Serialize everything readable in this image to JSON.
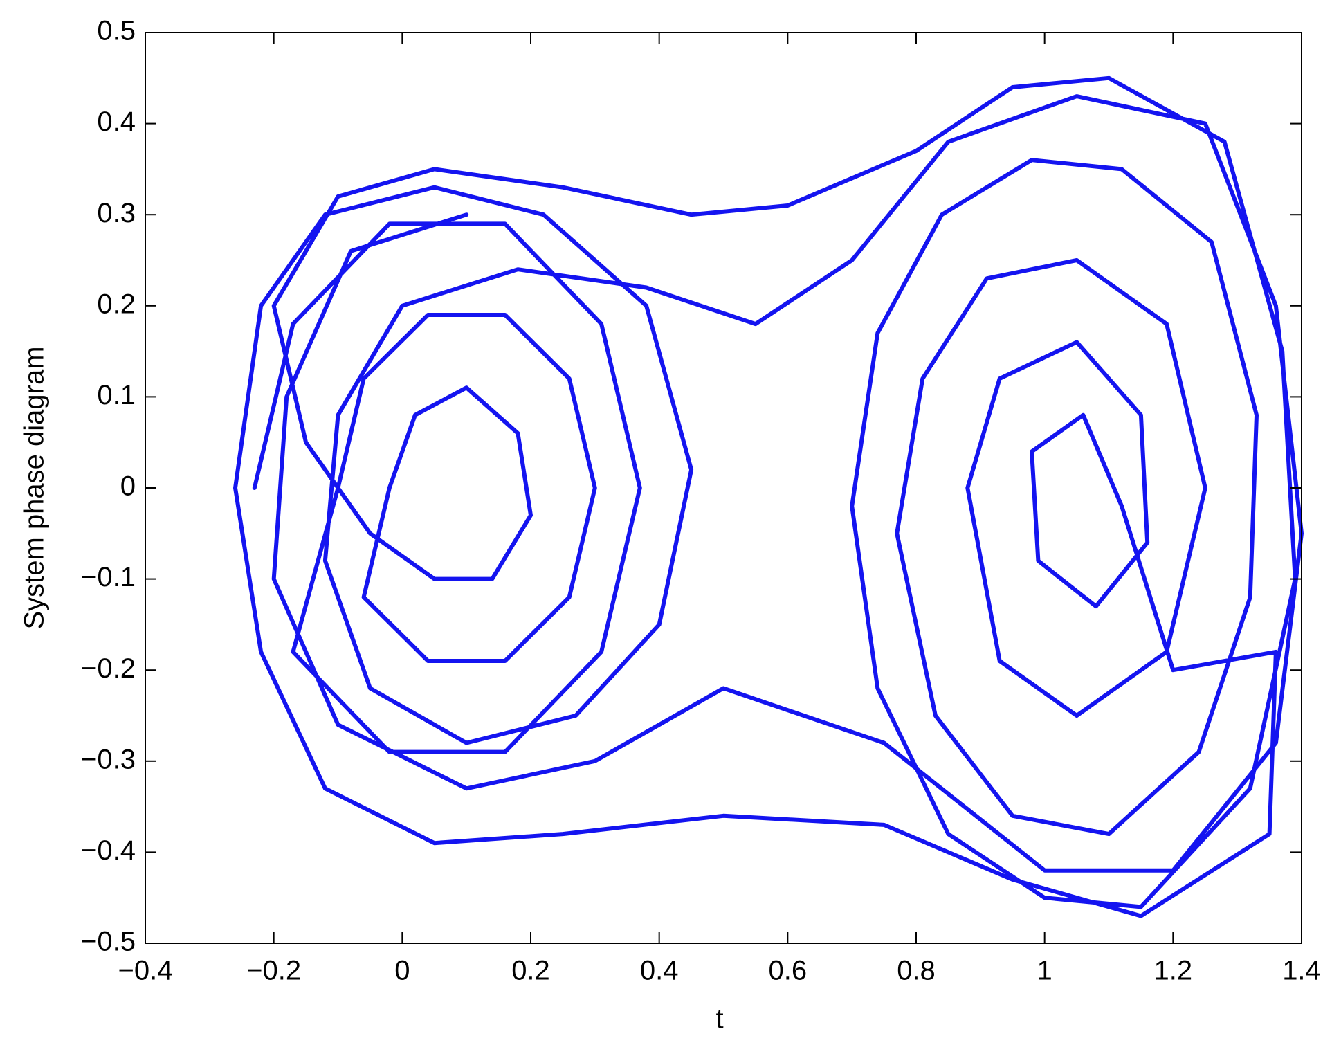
{
  "chart_data": {
    "type": "line",
    "x_label": "t",
    "y_label": "System phase diagram",
    "xlim": [
      -0.4,
      1.4
    ],
    "ylim": [
      -0.5,
      0.5
    ],
    "xticks": [
      {
        "value": -0.4,
        "label": "−0.4"
      },
      {
        "value": -0.2,
        "label": "−0.2"
      },
      0,
      0.2,
      0.4,
      0.6,
      0.8,
      1,
      1.2,
      1.4
    ],
    "yticks": [
      {
        "value": -0.5,
        "label": "−0.5"
      },
      {
        "value": -0.4,
        "label": "−0.4"
      },
      {
        "value": -0.3,
        "label": "−0.3"
      },
      {
        "value": -0.2,
        "label": "−0.2"
      },
      {
        "value": -0.1,
        "label": "−0.1"
      },
      0,
      0.1,
      0.2,
      0.3,
      0.4,
      0.5
    ],
    "grid": false,
    "x": [
      -0.23,
      -0.17,
      -0.02,
      0.16,
      0.31,
      0.37,
      0.31,
      0.16,
      -0.02,
      -0.17,
      -0.1,
      -0.06,
      0.04,
      0.16,
      0.26,
      0.3,
      0.26,
      0.16,
      0.04,
      -0.06,
      -0.02,
      0.02,
      0.1,
      0.18,
      0.2,
      0.14,
      0.05,
      -0.05,
      -0.15,
      -0.2,
      -0.1,
      0.05,
      0.25,
      0.45,
      0.6,
      0.8,
      0.95,
      1.1,
      1.28,
      1.37,
      1.39,
      1.32,
      1.15,
      1.0,
      0.85,
      0.74,
      0.7,
      0.74,
      0.84,
      0.98,
      1.12,
      1.26,
      1.33,
      1.32,
      1.24,
      1.1,
      0.95,
      0.83,
      0.77,
      0.81,
      0.91,
      1.05,
      1.19,
      1.25,
      1.19,
      1.05,
      0.93,
      0.88,
      0.93,
      1.05,
      1.15,
      1.16,
      1.08,
      0.99,
      0.98,
      1.06,
      1.12,
      1.2,
      1.36,
      1.35,
      1.15,
      0.95,
      0.75,
      0.5,
      0.25,
      0.05,
      -0.12,
      -0.22,
      -0.26,
      -0.22,
      -0.12,
      0.05,
      0.22,
      0.38,
      0.45,
      0.4,
      0.27,
      0.1,
      -0.05,
      -0.12,
      -0.1,
      0.0,
      0.18,
      0.38,
      0.55,
      0.7,
      0.85,
      1.05,
      1.25,
      1.36,
      1.4,
      1.36,
      1.2,
      1.0,
      0.75,
      0.5,
      0.3,
      0.1,
      -0.1,
      -0.2,
      -0.18,
      -0.08,
      0.1
    ],
    "series": [
      {
        "color": "#1414f0",
        "values": [
          0,
          0.18,
          0.29,
          0.29,
          0.18,
          0,
          -0.18,
          -0.29,
          -0.29,
          -0.18,
          0,
          0.12,
          0.19,
          0.19,
          0.12,
          0,
          -0.12,
          -0.19,
          -0.19,
          -0.12,
          0,
          0.08,
          0.11,
          0.06,
          -0.03,
          -0.1,
          -0.1,
          -0.05,
          0.05,
          0.2,
          0.32,
          0.35,
          0.33,
          0.3,
          0.31,
          0.37,
          0.44,
          0.45,
          0.38,
          0.15,
          -0.1,
          -0.33,
          -0.46,
          -0.45,
          -0.38,
          -0.22,
          -0.02,
          0.17,
          0.3,
          0.36,
          0.35,
          0.27,
          0.08,
          -0.12,
          -0.29,
          -0.38,
          -0.36,
          -0.25,
          -0.05,
          0.12,
          0.23,
          0.25,
          0.18,
          0,
          -0.18,
          -0.25,
          -0.19,
          0,
          0.12,
          0.16,
          0.08,
          -0.06,
          -0.13,
          -0.08,
          0.04,
          0.08,
          -0.02,
          -0.2,
          -0.18,
          -0.38,
          -0.47,
          -0.43,
          -0.37,
          -0.36,
          -0.38,
          -0.39,
          -0.33,
          -0.18,
          0,
          0.2,
          0.3,
          0.33,
          0.3,
          0.2,
          0.02,
          -0.15,
          -0.25,
          -0.28,
          -0.22,
          -0.08,
          0.08,
          0.2,
          0.24,
          0.22,
          0.18,
          0.25,
          0.38,
          0.43,
          0.4,
          0.2,
          -0.05,
          -0.28,
          -0.42,
          -0.42,
          -0.28,
          -0.22,
          -0.3,
          -0.33,
          -0.26,
          -0.1,
          0.1,
          0.26,
          0.3
        ]
      }
    ]
  }
}
